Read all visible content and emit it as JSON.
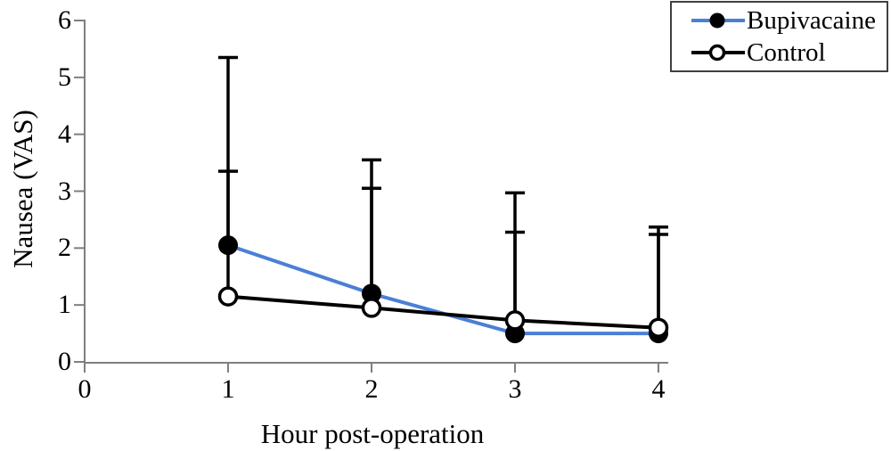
{
  "chart_data": {
    "type": "line",
    "title": "",
    "xlabel": "Hour post-operation",
    "ylabel": "Nausea (VAS)",
    "x": [
      1,
      2,
      3,
      4
    ],
    "x_tick_labels": [
      "0",
      "1",
      "2",
      "3",
      "4"
    ],
    "y_tick_labels": [
      "0",
      "1",
      "2",
      "3",
      "4",
      "5",
      "6"
    ],
    "xlim": [
      0,
      4.05
    ],
    "ylim": [
      0,
      6
    ],
    "grid": false,
    "legend_position": "top-right",
    "error_bars": "upper-only",
    "series": [
      {
        "name": "Bupivacaine",
        "marker": "filled-circle",
        "line_color": "#4b7fd6",
        "marker_color": "#000000",
        "values": [
          2.05,
          1.2,
          0.5,
          0.5
        ],
        "upper_error_top": [
          5.35,
          3.55,
          2.97,
          2.37
        ]
      },
      {
        "name": "Control",
        "marker": "open-circle",
        "line_color": "#000000",
        "marker_color": "#ffffff",
        "values": [
          1.15,
          0.95,
          0.73,
          0.6
        ],
        "upper_error_top": [
          3.35,
          3.05,
          2.28,
          2.24
        ]
      }
    ]
  },
  "legend": {
    "items": [
      {
        "label": "Bupivacaine"
      },
      {
        "label": "Control"
      }
    ]
  },
  "colors": {
    "axis": "#7f7f7f",
    "error_bar": "#000000",
    "bupivacaine_line": "#4b7fd6",
    "control_line": "#000000",
    "legend_border": "#404040"
  }
}
